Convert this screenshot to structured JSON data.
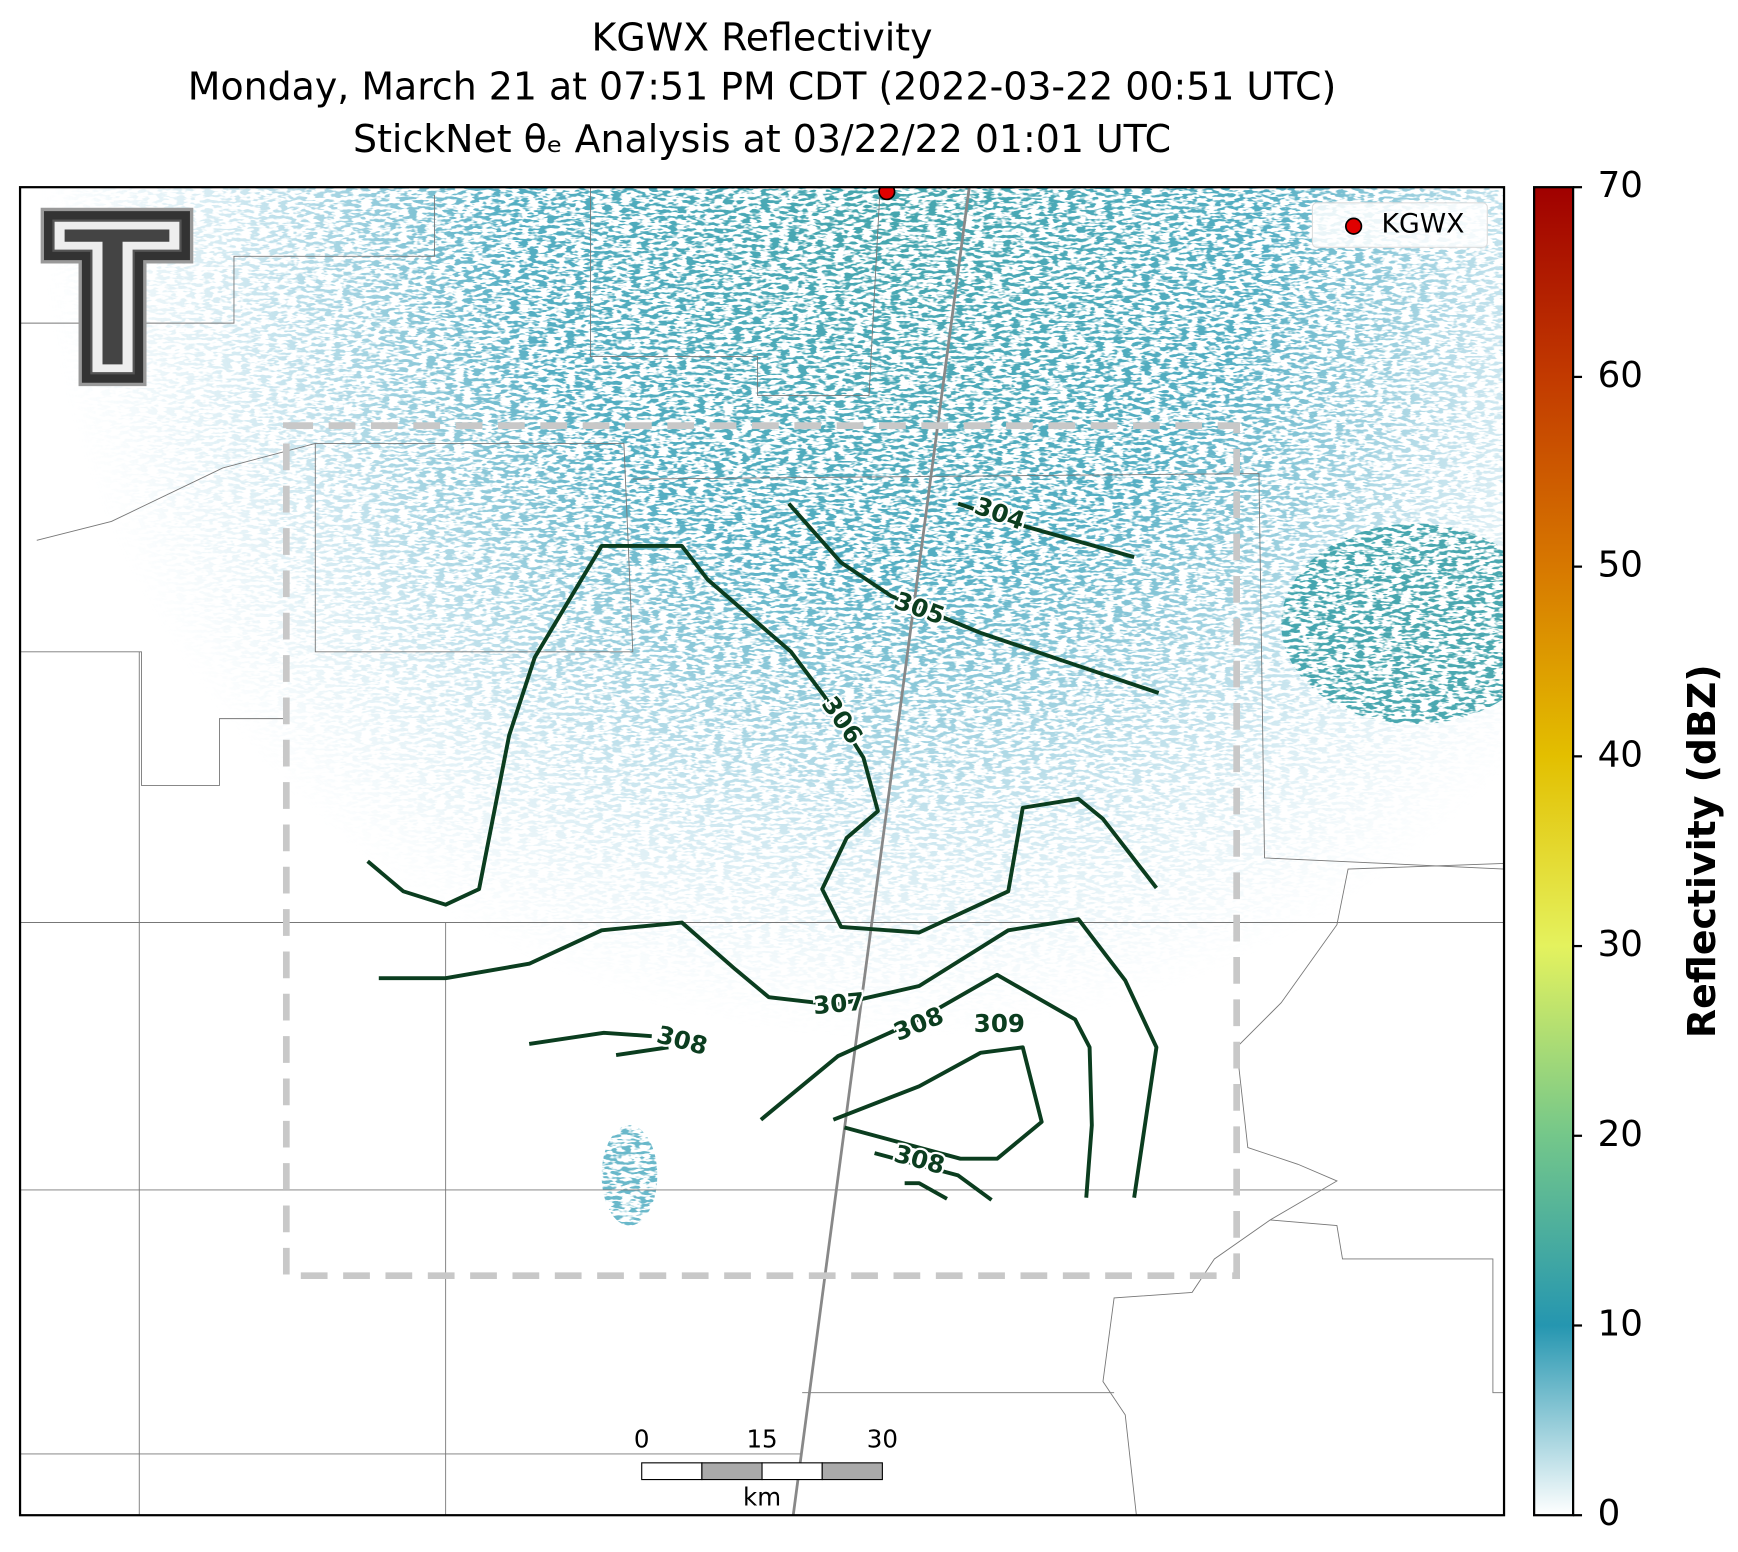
{
  "chart_data": {
    "type": "radar-map",
    "title": "KGWX Reflectivity",
    "subtitle": "Monday, March 21 at 07:51 PM CDT (2022-03-22 00:51 UTC)",
    "subtitle2": "StickNet θₑ Analysis at 03/22/22 01:01 UTC",
    "legend": "KGWX",
    "colorbar": {
      "label": "Reflectivity (dBZ)",
      "ylim": [
        0,
        70
      ],
      "yticks": [
        0,
        10,
        20,
        30,
        40,
        50,
        60,
        70
      ],
      "colors": [
        "#ffffff",
        "#2596b0",
        "#74c78a",
        "#e4f25e",
        "#e3bf00",
        "#d77800",
        "#c23a00",
        "#a00000"
      ]
    },
    "contours": {
      "color": "#0b3d1f",
      "levels": [
        304,
        305,
        306,
        307,
        308,
        309,
        308
      ]
    },
    "scale_bar": {
      "ticks": [
        0,
        15,
        30
      ],
      "unit": "km"
    }
  }
}
